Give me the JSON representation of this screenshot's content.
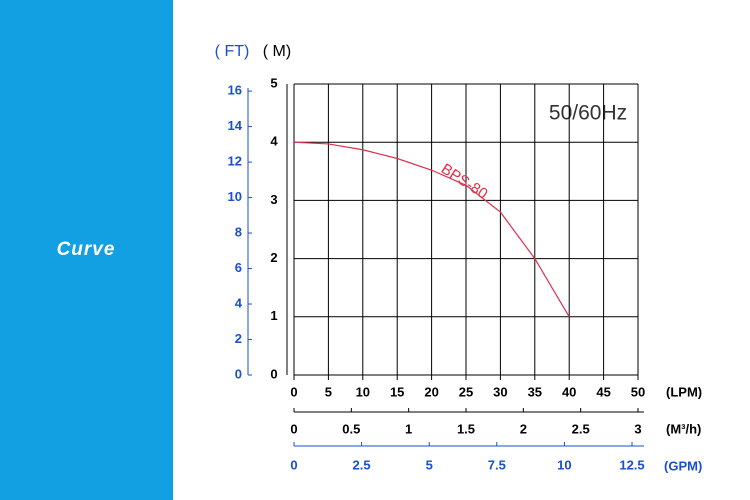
{
  "sidebar": {
    "title": "Curve"
  },
  "chart_data": {
    "type": "line",
    "title": "50/60Hz",
    "x_label": "(LPM)",
    "y_label": "( M)",
    "y2_label": "( FT)",
    "x": [
      0,
      5,
      10,
      15,
      20,
      25,
      30,
      35,
      40
    ],
    "series": [
      {
        "name": "BPS-80",
        "color": "#e0304a",
        "values": [
          4.0,
          3.97,
          3.87,
          3.72,
          3.52,
          3.26,
          2.8,
          2.0,
          1.0
        ]
      }
    ],
    "xlim": [
      0,
      50
    ],
    "xticks": [
      0,
      5,
      10,
      15,
      20,
      25,
      30,
      35,
      40,
      45,
      50
    ],
    "ylim": [
      0,
      5
    ],
    "yticks": [
      0,
      1,
      2,
      3,
      4,
      5
    ],
    "y2lim": [
      0,
      16.4
    ],
    "y2ticks": [
      0,
      2,
      4,
      6,
      8,
      10,
      12,
      14,
      16
    ],
    "x2_label": "(M³/h)",
    "x2lim": [
      0,
      3
    ],
    "x2ticks": [
      0,
      0.5,
      1,
      1.5,
      2,
      2.5,
      3
    ],
    "x3_label": "(GPM)",
    "x3lim": [
      0,
      12.5
    ],
    "x3ticks": [
      0,
      2.5,
      5,
      7.5,
      10,
      12.5
    ],
    "grid": true
  }
}
